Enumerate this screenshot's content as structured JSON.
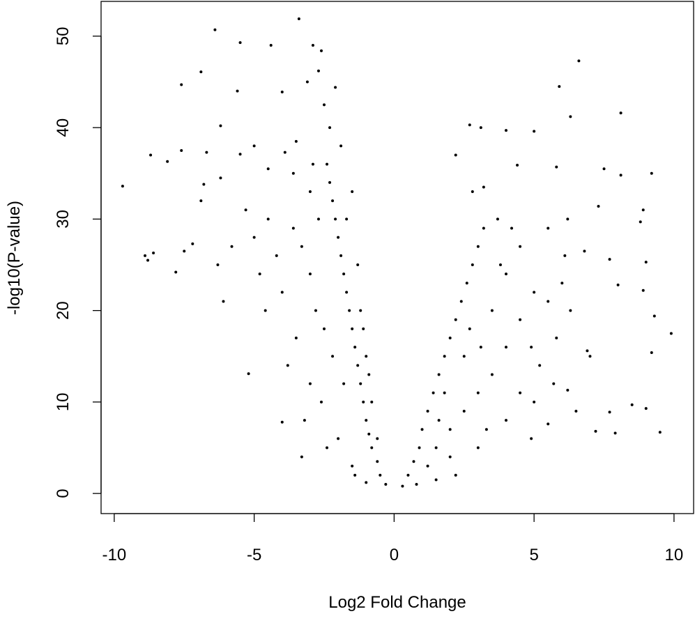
{
  "chart_data": {
    "type": "scatter",
    "x_label": "Log2 Fold Change",
    "y_label": "-log10(P-value)",
    "color": "#000000",
    "xlim": [
      -10.47,
      10.7
    ],
    "ylim": [
      -2.2,
      53.8
    ],
    "xticks": [
      -10,
      -5,
      0,
      5,
      10
    ],
    "yticks": [
      0,
      10,
      20,
      30,
      40,
      50
    ],
    "x": [
      -9.7,
      -8.7,
      -8.1,
      -7.6,
      -7.2,
      -8.9,
      -8.8,
      -8.6,
      -7.5,
      -7.8,
      -6.9,
      -7.6,
      -6.4,
      -5.5,
      -4.4,
      -3.4,
      -2.9,
      -2.6,
      -2.7,
      -5.6,
      -4,
      -3.1,
      -2.1,
      -6.2,
      -6.7,
      -6.8,
      -6.9,
      -6.2,
      -6.3,
      -6.1,
      -5.2,
      -4,
      -3.3,
      -5.5,
      -5,
      -4.5,
      -3.5,
      -3.9,
      6.6,
      5.9,
      8.1,
      6.3,
      2.7,
      3.1,
      4,
      5,
      2.2,
      9.2,
      8.1,
      7.5,
      5.8,
      4.4,
      3.2,
      7.3,
      8.9,
      9,
      9.9,
      9.3,
      9.2,
      9.5,
      9,
      8.5,
      7.9,
      7,
      6.9,
      8,
      8.8,
      6.2,
      6.1,
      6.8,
      7.7,
      5.5,
      6.2,
      5.5,
      4.9,
      7.2,
      7.7,
      8.9,
      -0.3,
      -0.5,
      -0.6,
      -0.8,
      -0.9,
      -1,
      -1.1,
      -1.2,
      -1.3,
      -1.4,
      -1.5,
      -1.6,
      -1.7,
      -1.8,
      -1.9,
      -2,
      -2.1,
      -2.2,
      -2.3,
      -2.4,
      -1.5,
      -1.3,
      -1.2,
      -1,
      -0.8,
      -0.6,
      -1.8,
      -2.2,
      -2.5,
      -2.8,
      -3,
      -3.3,
      -3.6,
      -2.6,
      -2,
      -1.5,
      -3,
      -3.5,
      -4,
      -4.2,
      -4.5,
      -3.8,
      -2.7,
      -3,
      -1.9,
      -2.3,
      -2.5,
      -1.4,
      -1,
      -2.4,
      -3.2,
      -4.6,
      -5,
      -5.3,
      -5.8,
      -4.8,
      -3.6,
      -2.9,
      -1.7,
      -1.1,
      -0.9,
      0.3,
      0.5,
      0.7,
      0.9,
      1,
      1.2,
      1.4,
      1.6,
      1.8,
      2,
      2.2,
      2.4,
      2.6,
      2.8,
      3,
      3.2,
      1.5,
      2,
      2.5,
      3,
      3.5,
      4,
      4.5,
      5,
      1.2,
      2,
      3,
      4,
      4.5,
      5.2,
      5.8,
      6.3,
      1.8,
      2.5,
      3.5,
      4,
      4.5,
      3.7,
      2.8,
      5.5,
      6,
      5,
      3.3,
      2.2,
      1.5,
      0.8,
      2.7,
      3.8,
      4.2,
      1.6,
      3.1,
      4.9,
      5.7,
      6.5
    ],
    "y": [
      33.6,
      37,
      36.3,
      37.5,
      27.3,
      26,
      25.5,
      26.3,
      26.5,
      24.2,
      46.1,
      44.7,
      50.7,
      49.3,
      49,
      51.9,
      49,
      48.4,
      46.2,
      44,
      43.9,
      45,
      44.4,
      40.2,
      37.3,
      33.8,
      32,
      34.5,
      25,
      21,
      13.1,
      7.8,
      4,
      37.1,
      38,
      35.5,
      38.5,
      37.3,
      47.3,
      44.5,
      41.6,
      41.2,
      40.3,
      40,
      39.7,
      39.6,
      37,
      35,
      34.8,
      35.5,
      35.7,
      35.9,
      33.5,
      31.4,
      31,
      25.3,
      17.5,
      19.4,
      15.4,
      6.7,
      9.3,
      9.7,
      6.6,
      15,
      15.6,
      22.8,
      29.7,
      30,
      26,
      26.5,
      25.6,
      21,
      11.3,
      7.6,
      6,
      6.8,
      8.9,
      22.2,
      1,
      2,
      3.5,
      5,
      6.5,
      8,
      10,
      12,
      14,
      16,
      18,
      20,
      22,
      24,
      26,
      28,
      30,
      32,
      34,
      36,
      33,
      25,
      20,
      15,
      10,
      6,
      12,
      15,
      18,
      20,
      24,
      27,
      29,
      10,
      6,
      3,
      12,
      17,
      22,
      26,
      30,
      14,
      30,
      33,
      38,
      40,
      42.5,
      2,
      1.2,
      5,
      8,
      20,
      28,
      31,
      27,
      24,
      35,
      36,
      30,
      18,
      13,
      0.8,
      2,
      3.5,
      5,
      7,
      9,
      11,
      13,
      15,
      17,
      19,
      21,
      23,
      25,
      27,
      29,
      5,
      7,
      9,
      11,
      13,
      16,
      19,
      22,
      3,
      4,
      5,
      8,
      11,
      14,
      17,
      20,
      11,
      15,
      20,
      24,
      27,
      30,
      33,
      29,
      23,
      10,
      7,
      2,
      1.5,
      1,
      18,
      25,
      29,
      8,
      16,
      16,
      12,
      9
    ]
  }
}
